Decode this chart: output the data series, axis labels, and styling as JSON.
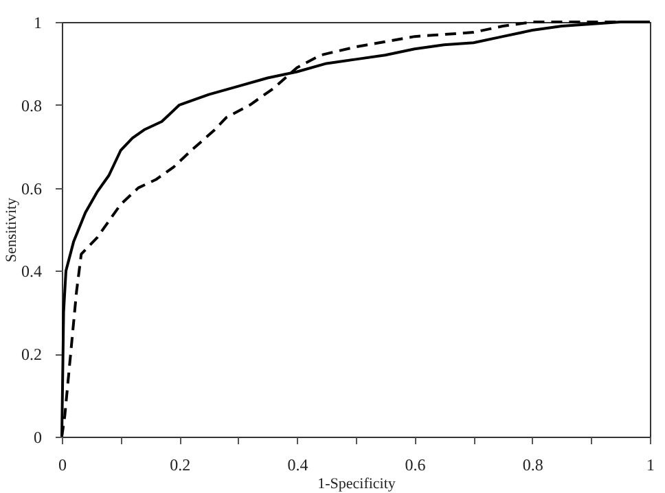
{
  "chart_data": {
    "type": "line",
    "xlabel": "1-Specificity",
    "ylabel": "Sensitivity",
    "x": [
      0,
      0.003,
      0.007,
      0.02,
      0.04,
      0.06,
      0.08,
      0.1,
      0.12,
      0.14,
      0.17,
      0.2,
      0.25,
      0.3,
      0.35,
      0.4,
      0.45,
      0.5,
      0.55,
      0.6,
      0.65,
      0.7,
      0.75,
      0.8,
      0.85,
      0.9,
      0.95,
      1
    ],
    "xlim": [
      0,
      1
    ],
    "ylim": [
      0,
      1
    ],
    "xticks": [
      0,
      {
        "value": 0.1,
        "label": null
      },
      0.2,
      {
        "value": 0.3,
        "label": null
      },
      0.4,
      {
        "value": 0.5,
        "label": null
      },
      0.6,
      {
        "value": 0.7,
        "label": null
      },
      0.8,
      {
        "value": 0.9,
        "label": null
      },
      1
    ],
    "yticks": [
      0,
      0.2,
      0.4,
      0.6,
      0.8,
      1
    ],
    "grid": false,
    "marker": "none",
    "series": [
      {
        "color": "#000000",
        "line_style": "solid",
        "values": [
          0,
          0.3,
          0.4,
          0.47,
          0.54,
          0.59,
          0.63,
          0.69,
          0.72,
          0.74,
          0.76,
          0.8,
          0.825,
          0.845,
          0.865,
          0.88,
          0.9,
          0.91,
          0.92,
          0.935,
          0.945,
          0.95,
          0.965,
          0.98,
          0.99,
          0.995,
          1,
          1
        ]
      },
      {
        "color": "#000000",
        "line_style": "dashed",
        "x": [
          0,
          0.005,
          0.015,
          0.025,
          0.033,
          0.06,
          0.08,
          0.1,
          0.13,
          0.16,
          0.19,
          0.22,
          0.26,
          0.28,
          0.32,
          0.36,
          0.4,
          0.44,
          0.5,
          0.6,
          0.7,
          0.75,
          0.8,
          1
        ],
        "values": [
          0,
          0.05,
          0.2,
          0.35,
          0.44,
          0.48,
          0.52,
          0.56,
          0.6,
          0.62,
          0.65,
          0.69,
          0.74,
          0.77,
          0.8,
          0.84,
          0.89,
          0.92,
          0.94,
          0.965,
          0.975,
          0.99,
          1,
          1
        ]
      }
    ]
  }
}
